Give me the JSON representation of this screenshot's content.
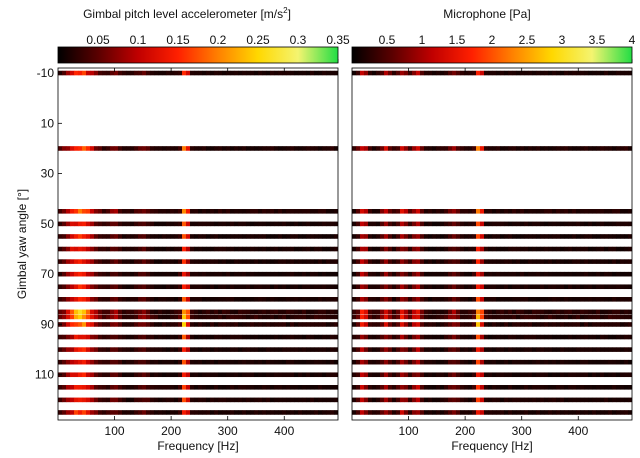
{
  "chart_data": [
    {
      "type": "heatmap",
      "title": "Gimbal pitch level accelerometer [m/s",
      "title_superscript": "2",
      "title_suffix": "]",
      "xlabel": "Frequency [Hz]",
      "ylabel": "Gimbal yaw angle [°]",
      "xlim": [
        0,
        495
      ],
      "ylim": [
        -12,
        128
      ],
      "y_inverted": true,
      "xticks": [
        100,
        200,
        300,
        400
      ],
      "yticks": [
        -10,
        10,
        30,
        50,
        70,
        90,
        110
      ],
      "colorbar": {
        "orientation": "horizontal",
        "position": "top",
        "range": [
          0,
          0.35
        ],
        "ticks": [
          0.05,
          0.1,
          0.15,
          0.2,
          0.25,
          0.3,
          0.35
        ]
      },
      "colormap": [
        "#000000",
        "#5a0000",
        "#c00000",
        "#ff2000",
        "#ff8000",
        "#ffd800",
        "#f4f470",
        "#22dd44"
      ],
      "yaw_angles": [
        -10,
        20,
        45,
        50,
        55,
        60,
        65,
        70,
        75,
        80,
        85,
        87,
        90,
        95,
        100,
        105,
        110,
        115,
        120,
        125
      ],
      "row_intensity": [
        0.6,
        0.7,
        0.75,
        0.55,
        0.55,
        0.55,
        0.55,
        0.55,
        0.55,
        0.55,
        0.85,
        0.9,
        0.75,
        0.55,
        0.55,
        0.55,
        0.55,
        0.6,
        0.6,
        0.6
      ],
      "peaks": [
        {
          "freq": 40,
          "width": 25,
          "amp": 0.8
        },
        {
          "freq": 225,
          "width": 6,
          "amp": 1.0
        },
        {
          "freq": 100,
          "width": 10,
          "amp": 0.25
        },
        {
          "freq": 150,
          "width": 12,
          "amp": 0.2
        }
      ],
      "max_value": 0.35
    },
    {
      "type": "heatmap",
      "title": "Microphone [Pa]",
      "title_superscript": "",
      "title_suffix": "",
      "xlabel": "Frequency [Hz]",
      "ylabel": "",
      "xlim": [
        0,
        495
      ],
      "ylim": [
        -12,
        128
      ],
      "y_inverted": true,
      "xticks": [
        100,
        200,
        300,
        400
      ],
      "yticks": [],
      "colorbar": {
        "orientation": "horizontal",
        "position": "top",
        "range": [
          0,
          4
        ],
        "ticks": [
          0.5,
          1,
          1.5,
          2,
          2.5,
          3,
          3.5,
          4
        ]
      },
      "colormap": [
        "#000000",
        "#5a0000",
        "#c00000",
        "#ff2000",
        "#ff8000",
        "#ffd800",
        "#f4f470",
        "#22dd44"
      ],
      "yaw_angles": [
        -10,
        20,
        45,
        50,
        55,
        60,
        65,
        70,
        75,
        80,
        85,
        87,
        90,
        95,
        100,
        105,
        110,
        115,
        120,
        125
      ],
      "row_intensity": [
        0.6,
        0.75,
        0.75,
        0.55,
        0.55,
        0.55,
        0.55,
        0.55,
        0.55,
        0.55,
        0.85,
        0.9,
        0.75,
        0.55,
        0.55,
        0.55,
        0.55,
        0.6,
        0.6,
        0.6
      ],
      "peaks": [
        {
          "freq": 20,
          "width": 8,
          "amp": 0.5
        },
        {
          "freq": 60,
          "width": 8,
          "amp": 0.4
        },
        {
          "freq": 90,
          "width": 8,
          "amp": 0.45
        },
        {
          "freq": 115,
          "width": 8,
          "amp": 0.45
        },
        {
          "freq": 225,
          "width": 6,
          "amp": 0.95
        },
        {
          "freq": 180,
          "width": 10,
          "amp": 0.25
        }
      ],
      "max_value": 4
    }
  ]
}
